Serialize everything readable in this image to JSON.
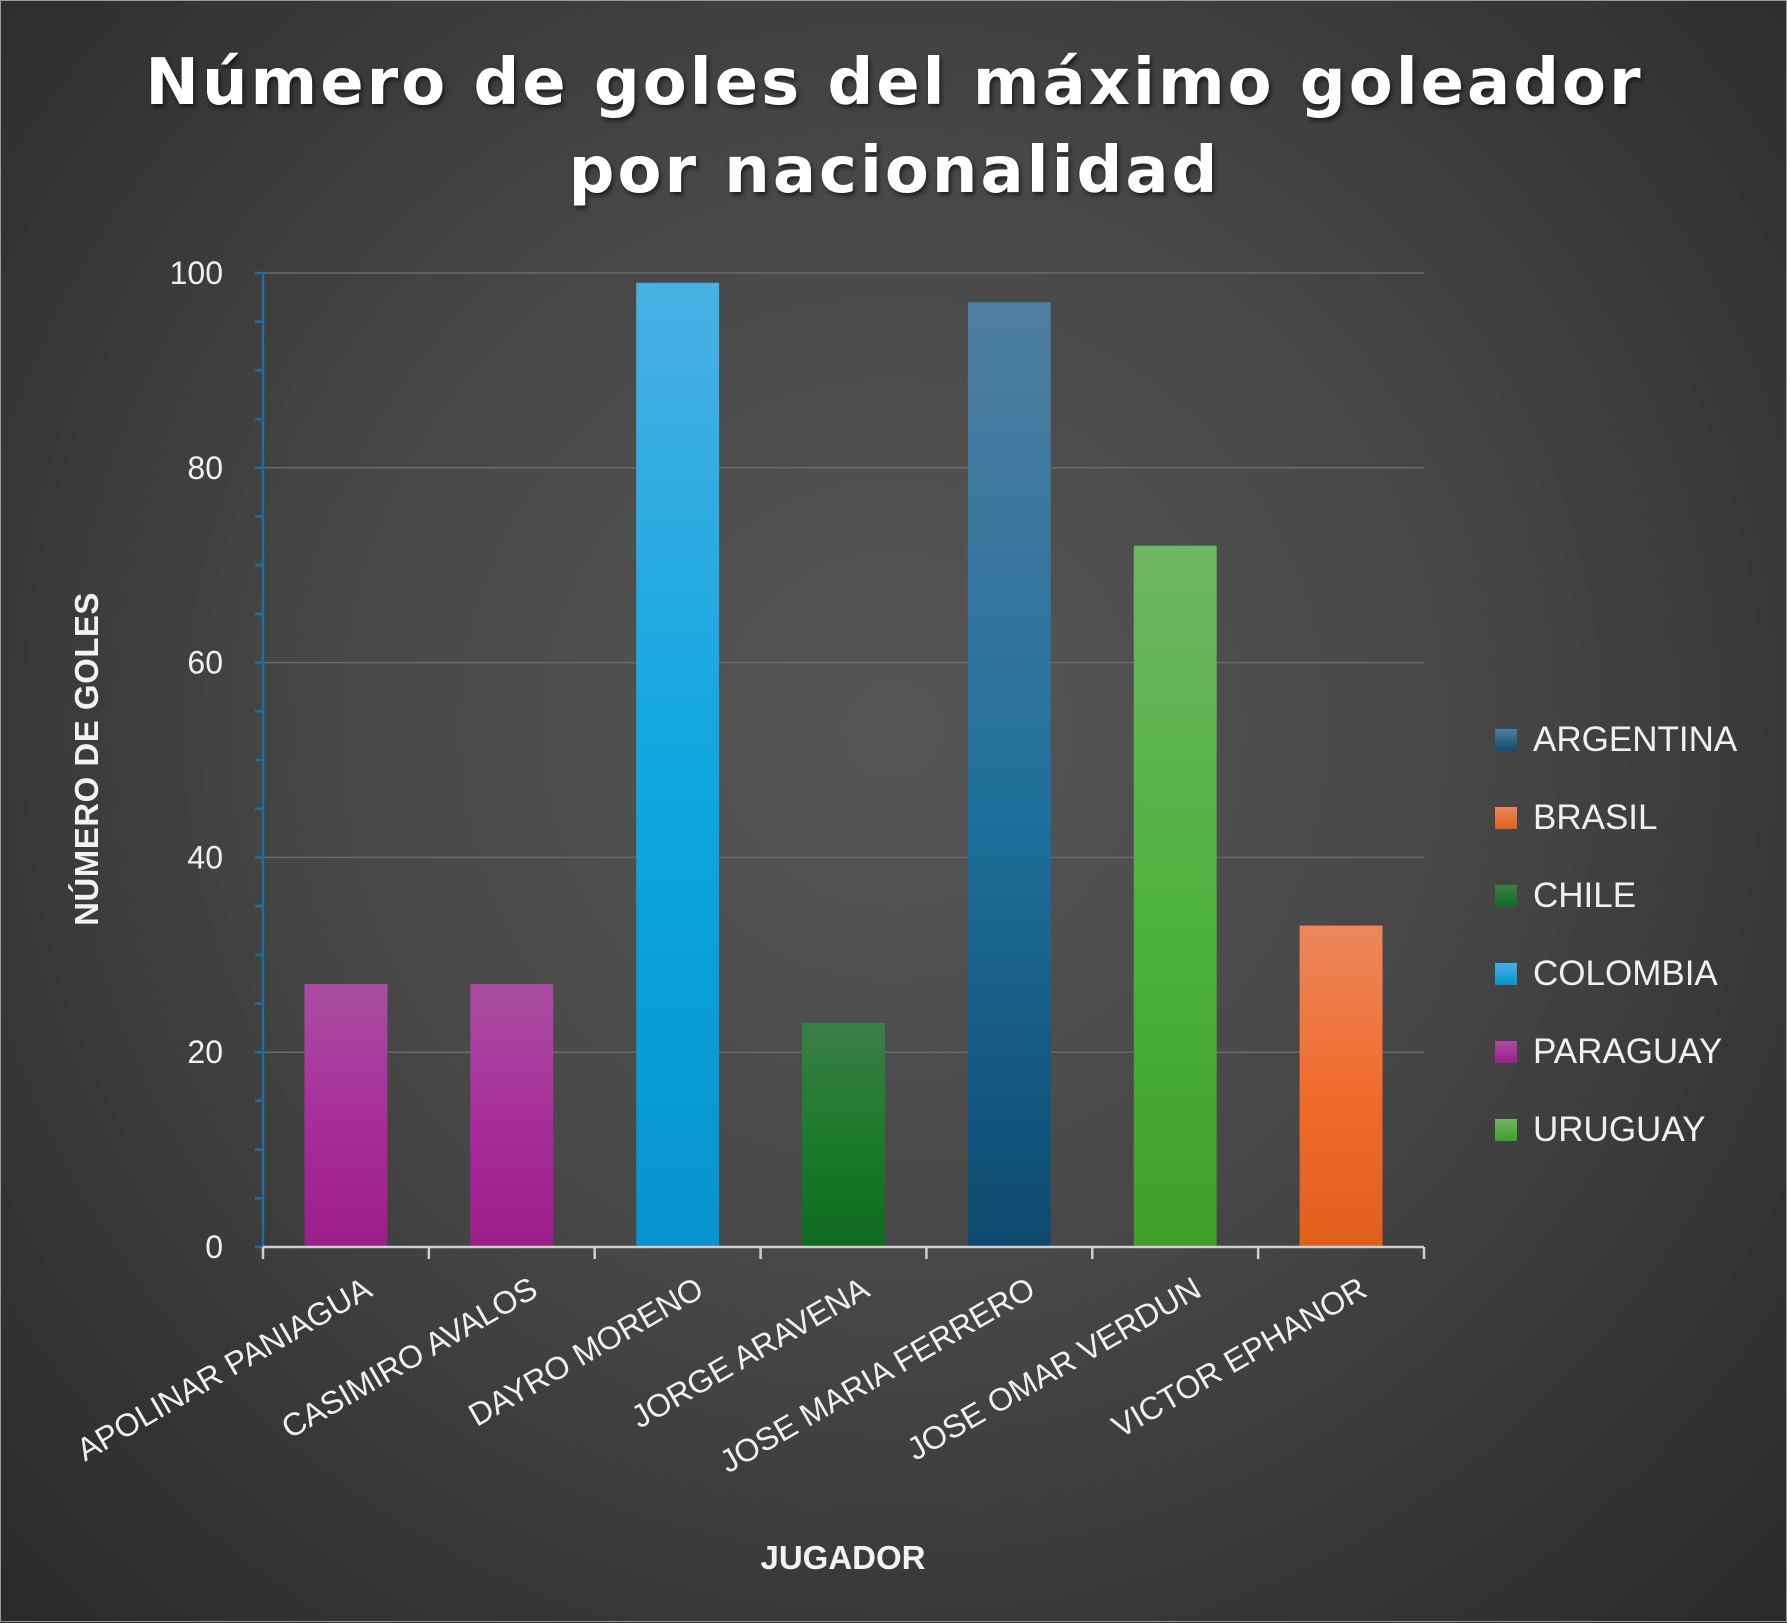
{
  "chart_data": {
    "type": "bar",
    "title": "Número de goles del máximo goleador por nacionalidad",
    "title_lines": [
      "Número de goles del máximo goleador",
      "por nacionalidad"
    ],
    "xlabel": "JUGADOR",
    "ylabel": "NÚMERO DE GOLES",
    "ylim": [
      0,
      100
    ],
    "y_ticks": [
      0,
      20,
      40,
      60,
      80,
      100
    ],
    "grid": true,
    "legend_position": "right",
    "categories": [
      "APOLINAR PANIAGUA",
      "CASIMIRO AVALOS",
      "DAYRO MORENO",
      "JORGE ARAVENA",
      "JOSE MARIA FERRERO",
      "JOSE OMAR VERDUN",
      "VICTOR EPHANOR"
    ],
    "values": [
      27,
      27,
      99,
      23,
      97,
      72,
      33
    ],
    "bar_series": [
      "PARAGUAY",
      "PARAGUAY",
      "COLOMBIA",
      "CHILE",
      "ARGENTINA",
      "URUGUAY",
      "BRASIL"
    ],
    "series": [
      {
        "name": "ARGENTINA",
        "color": "#1e6f9c",
        "color_dark": "#0d4a6e",
        "color_light": "#4f7ea0"
      },
      {
        "name": "BRASIL",
        "color": "#f06a2a",
        "color_dark": "#e0601b",
        "color_light": "#ee875d"
      },
      {
        "name": "CHILE",
        "color": "#1a7a2a",
        "color_dark": "#0e6a1f",
        "color_light": "#3b7f47"
      },
      {
        "name": "COLOMBIA",
        "color": "#0aa6e0",
        "color_dark": "#0693cf",
        "color_light": "#49b0e3"
      },
      {
        "name": "PARAGUAY",
        "color": "#a82b9a",
        "color_dark": "#9b1e8b",
        "color_light": "#a94ea0"
      },
      {
        "name": "URUGUAY",
        "color": "#4bb33a",
        "color_dark": "#3e9f28",
        "color_light": "#6fb663"
      }
    ]
  }
}
